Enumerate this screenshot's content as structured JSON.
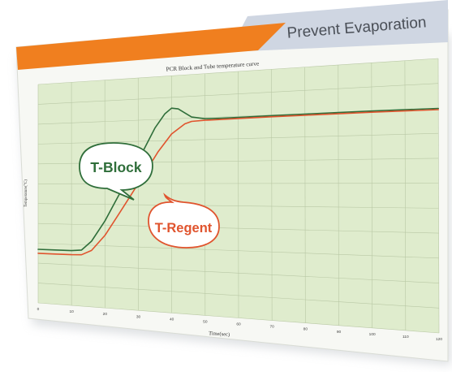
{
  "header": {
    "title": "Prevent Evaporation",
    "accent_color": "#f07f1f",
    "bar_color": "#cfd6e2"
  },
  "chart_data": {
    "type": "line",
    "title": "PCR Block and Tube temperature curve",
    "xlabel": "Time(sec)",
    "ylabel": "Temperature(°C)",
    "xlim": [
      0,
      120
    ],
    "ylim": [
      0,
      110
    ],
    "grid": true,
    "plot_bg": "#dfeccd",
    "x_ticks": [
      0,
      10,
      20,
      30,
      40,
      50,
      60,
      70,
      80,
      90,
      100,
      110,
      120
    ],
    "series": [
      {
        "name": "T-Block",
        "color": "#2f6e3a",
        "x": [
          0,
          5,
          10,
          13,
          16,
          20,
          24,
          28,
          32,
          35,
          38,
          40,
          42,
          44,
          46,
          50,
          55,
          60,
          70,
          80,
          90,
          100,
          110,
          120
        ],
        "y": [
          27,
          27,
          27,
          27.5,
          32,
          42,
          54,
          65,
          77,
          86,
          92.5,
          95,
          94.5,
          92.5,
          90.5,
          89.5,
          89.4,
          89.5,
          89.7,
          89.8,
          89.9,
          90,
          90,
          90
        ]
      },
      {
        "name": "T-Regent",
        "color": "#e0542e",
        "x": [
          0,
          5,
          10,
          13,
          16,
          20,
          24,
          28,
          32,
          36,
          40,
          44,
          46,
          50,
          60,
          70,
          80,
          90,
          100,
          110,
          120
        ],
        "y": [
          25,
          25,
          25,
          25.2,
          27.5,
          35,
          45,
          55,
          65,
          75,
          83,
          87.5,
          88.5,
          88.8,
          89,
          89.2,
          89.3,
          89.4,
          89.5,
          89.5,
          89.5
        ]
      }
    ],
    "annotations": [
      {
        "text": "T-Block",
        "series": "T-Block"
      },
      {
        "text": "T-Regent",
        "series": "T-Regent"
      }
    ]
  }
}
